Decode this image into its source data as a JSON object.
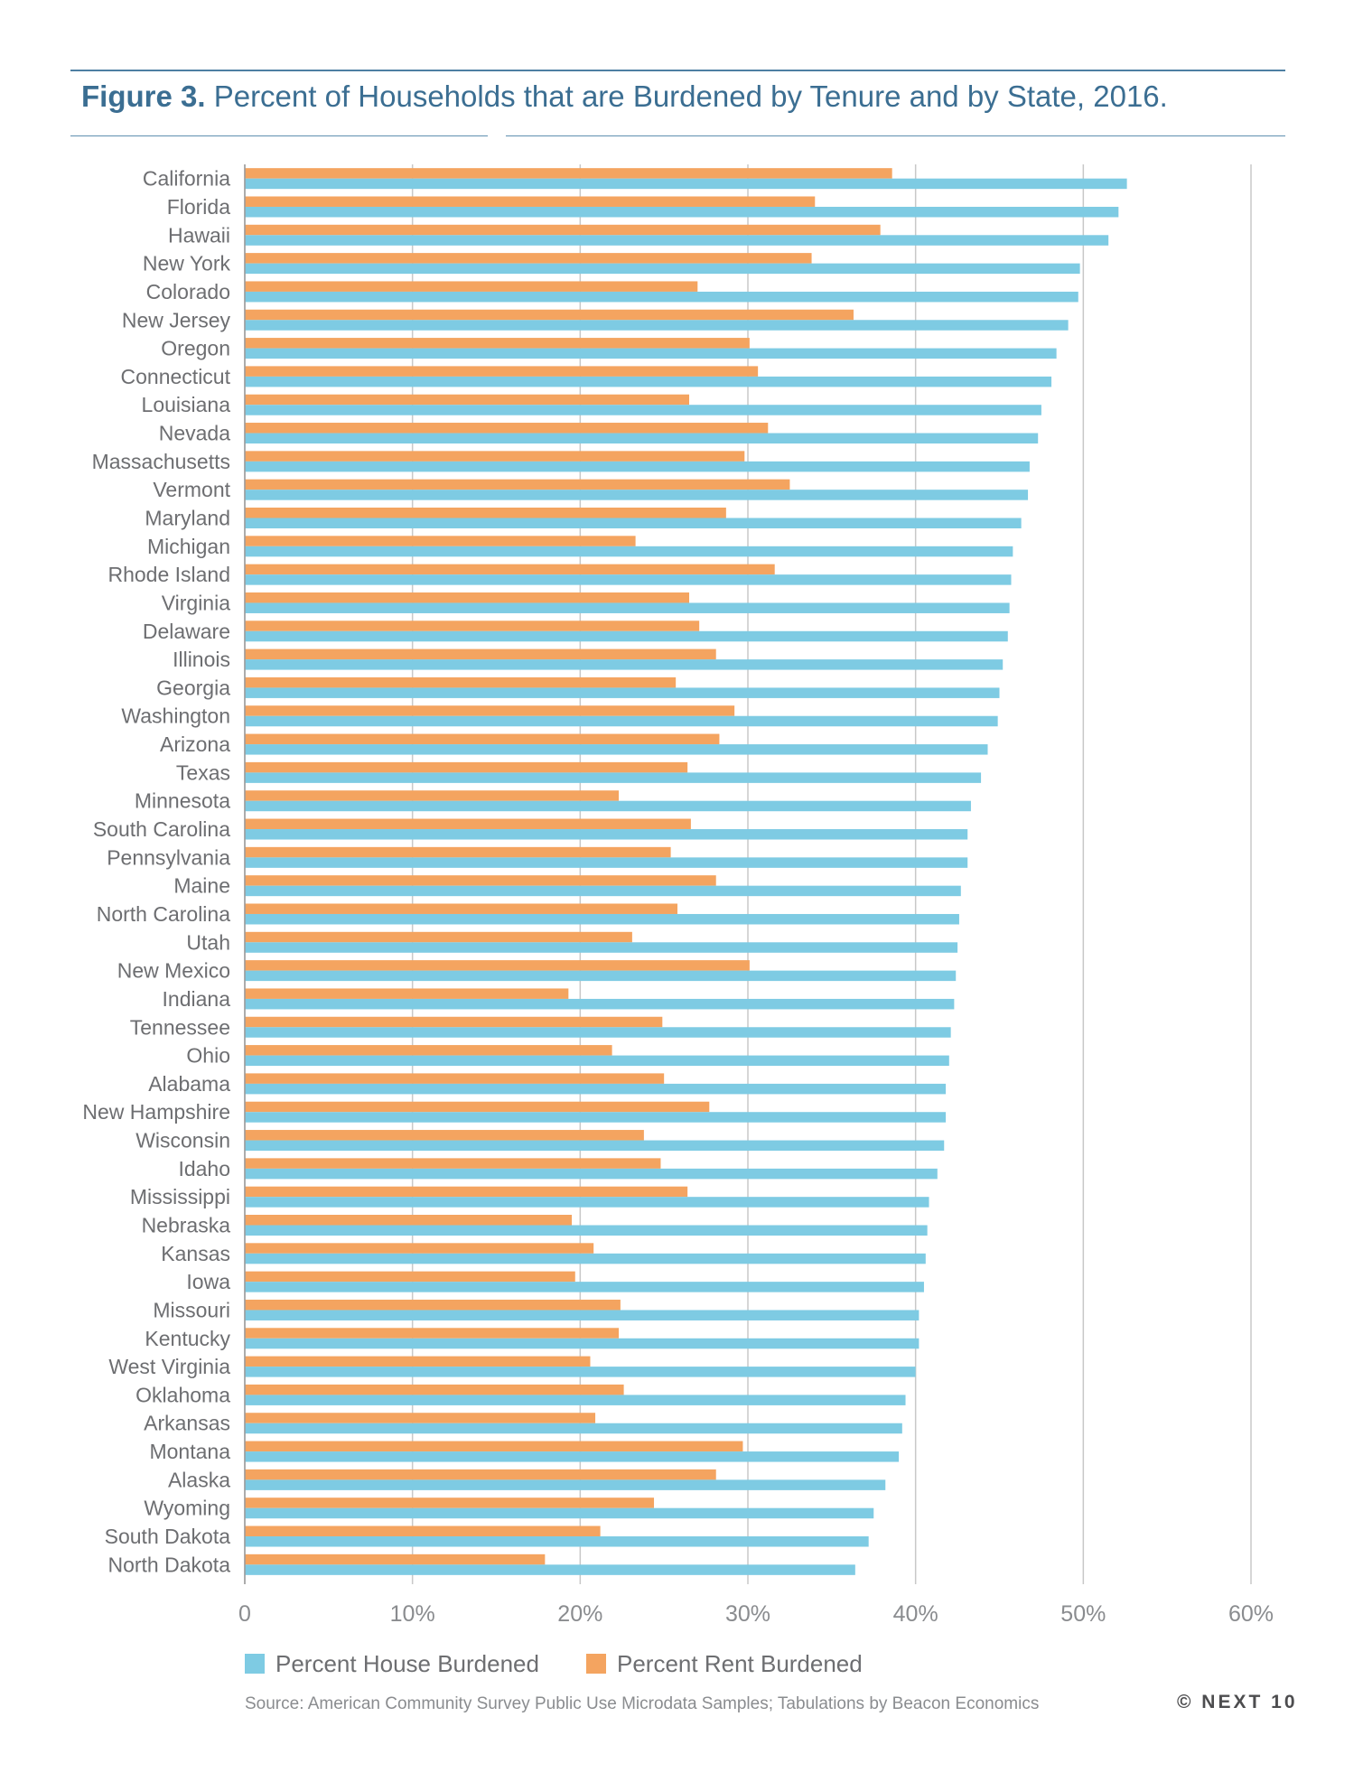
{
  "figure": {
    "label": "Figure 3.",
    "title": "Percent of Households that are Burdened by Tenure and by State, 2016."
  },
  "source": "Source: American Community Survey Public Use Microdata Samples; Tabulations by Beacon Economics",
  "brand": "© NEXT 10",
  "colors": {
    "house": "#7ecbe3",
    "rent": "#f4a460",
    "grid": "#c8c8c8",
    "text": "#6d6e71",
    "title": "#3b6e92"
  },
  "chart_data": {
    "type": "bar",
    "orientation": "horizontal",
    "xlim": [
      0,
      60
    ],
    "x_ticks": [
      "0",
      "10%",
      "20%",
      "30%",
      "40%",
      "50%",
      "60%"
    ],
    "grid": true,
    "legend_position": "bottom",
    "categories": [
      "California",
      "Florida",
      "Hawaii",
      "New York",
      "Colorado",
      "New Jersey",
      "Oregon",
      "Connecticut",
      "Louisiana",
      "Nevada",
      "Massachusetts",
      "Vermont",
      "Maryland",
      "Michigan",
      "Rhode Island",
      "Virginia",
      "Delaware",
      "Illinois",
      "Georgia",
      "Washington",
      "Arizona",
      "Texas",
      "Minnesota",
      "South Carolina",
      "Pennsylvania",
      "Maine",
      "North Carolina",
      "Utah",
      "New Mexico",
      "Indiana",
      "Tennessee",
      "Ohio",
      "Alabama",
      "New Hampshire",
      "Wisconsin",
      "Idaho",
      "Mississippi",
      "Nebraska",
      "Kansas",
      "Iowa",
      "Missouri",
      "Kentucky",
      "West Virginia",
      "Oklahoma",
      "Arkansas",
      "Montana",
      "Alaska",
      "Wyoming",
      "South Dakota",
      "North Dakota"
    ],
    "series": [
      {
        "name": "Percent House Burdened",
        "values": [
          52.6,
          52.1,
          51.5,
          49.8,
          49.7,
          49.1,
          48.4,
          48.1,
          47.5,
          47.3,
          46.8,
          46.7,
          46.3,
          45.8,
          45.7,
          45.6,
          45.5,
          45.2,
          45.0,
          44.9,
          44.3,
          43.9,
          43.3,
          43.1,
          43.1,
          42.7,
          42.6,
          42.5,
          42.4,
          42.3,
          42.1,
          42.0,
          41.8,
          41.8,
          41.7,
          41.3,
          40.8,
          40.7,
          40.6,
          40.5,
          40.2,
          40.2,
          40.0,
          39.4,
          39.2,
          39.0,
          38.2,
          37.5,
          37.2,
          36.4
        ]
      },
      {
        "name": "Percent Rent Burdened",
        "values": [
          38.6,
          34.0,
          37.9,
          33.8,
          27.0,
          36.3,
          30.1,
          30.6,
          26.5,
          31.2,
          29.8,
          32.5,
          28.7,
          23.3,
          31.6,
          26.5,
          27.1,
          28.1,
          25.7,
          29.2,
          28.3,
          26.4,
          22.3,
          26.6,
          25.4,
          28.1,
          25.8,
          23.1,
          30.1,
          19.3,
          24.9,
          21.9,
          25.0,
          27.7,
          23.8,
          24.8,
          26.4,
          19.5,
          20.8,
          19.7,
          22.4,
          22.3,
          20.6,
          22.6,
          20.9,
          29.7,
          28.1,
          24.4,
          21.2,
          17.9
        ]
      }
    ]
  }
}
